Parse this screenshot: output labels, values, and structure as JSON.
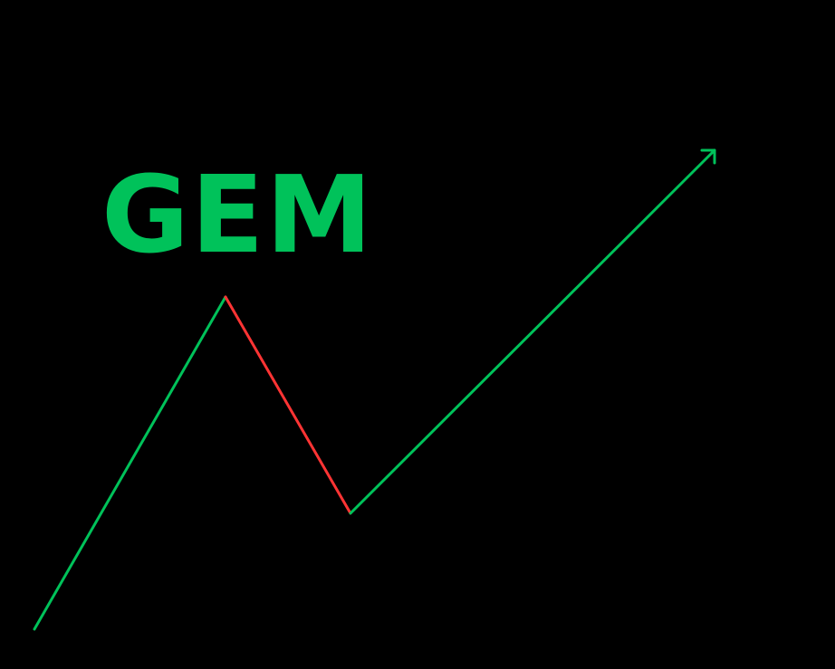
{
  "title": "GEM",
  "colors": {
    "background": "#000000",
    "up": "#00c25a",
    "down": "#ff3434",
    "title": "#00c25a"
  },
  "icons": {
    "arrow_head": "arrow-head-icon"
  }
}
